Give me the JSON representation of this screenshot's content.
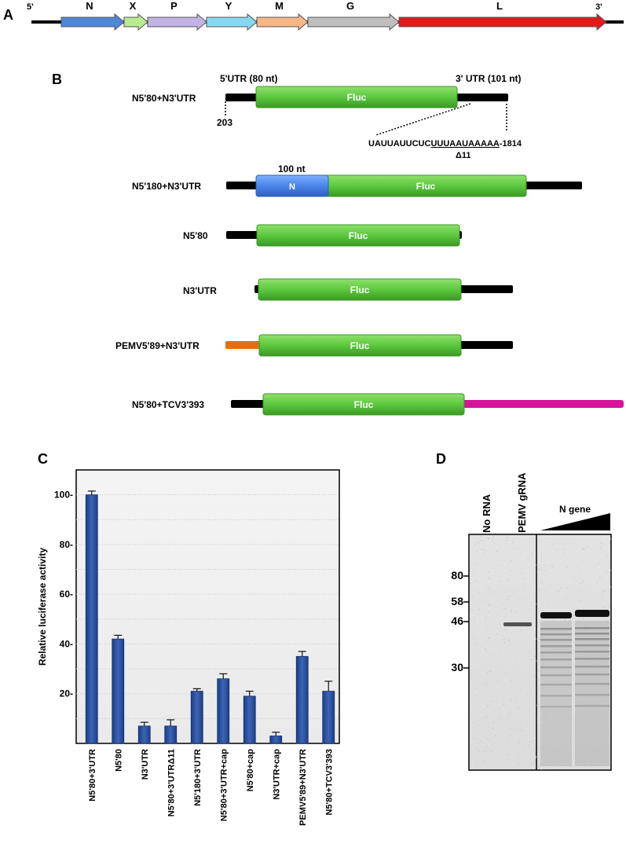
{
  "panels": {
    "a": "A",
    "b": "B",
    "c": "C",
    "d": "D"
  },
  "colors": {
    "N": "#4f86d8",
    "X": "#b9ec8e",
    "P": "#c3b3e3",
    "Y": "#86d8f2",
    "M": "#f7b786",
    "G": "#bfbfbf",
    "L": "#e31a1a",
    "fluc": "#5cc83f",
    "pemv5": "#e46f12",
    "tcv3": "#d6129a",
    "bars": "#2a4f9b"
  },
  "genome": {
    "five_prime": "5'",
    "three_prime": "3'",
    "genes": [
      "N",
      "X",
      "P",
      "Y",
      "M",
      "G",
      "L"
    ]
  },
  "constructs": {
    "utr5": "5'UTR (80 nt)",
    "utr3": "3' UTR (101 nt)",
    "pos_203": "203",
    "sequence_plain": "UAUUAUUCUC",
    "sequence_underlined": "UUUAAUAAAAA",
    "sequence_end": "-1814",
    "delta": "Δ11",
    "nt100": "100 nt",
    "n_label": "N",
    "fluc": "Fluc",
    "names": [
      "N5'80+N3'UTR",
      "N5'180+N3'UTR",
      "N5'80",
      "N3'UTR",
      "PEMV5'89+N3'UTR",
      "N5'80+TCV3'393"
    ]
  },
  "gel": {
    "lanes": [
      "No RNA",
      "PEMV gRNA"
    ],
    "n_gene": "N gene",
    "markers": [
      "80",
      "58",
      "46",
      "30"
    ]
  },
  "chart_data": {
    "type": "bar",
    "ylabel": "Relative luciferase activity",
    "ylim": [
      0,
      110
    ],
    "yticks": [
      20,
      40,
      60,
      80,
      100
    ],
    "grid": true,
    "categories": [
      "N5'80+3'UTR",
      "N5'80",
      "N3'UTR",
      "N5'80+3'UTRΔ11",
      "N5'180+3'UTR",
      "N5'80+3'UTR+cap",
      "N5'80+cap",
      "N3'UTR+cap",
      "PEMV5'89+N3'UTR",
      "N5'80+TCV3'393"
    ],
    "values": [
      100,
      42,
      7,
      7,
      21,
      26,
      19,
      3,
      35,
      21
    ],
    "errors": [
      1.5,
      1.5,
      1.5,
      2.5,
      1,
      2,
      2,
      1.5,
      2,
      4
    ]
  }
}
